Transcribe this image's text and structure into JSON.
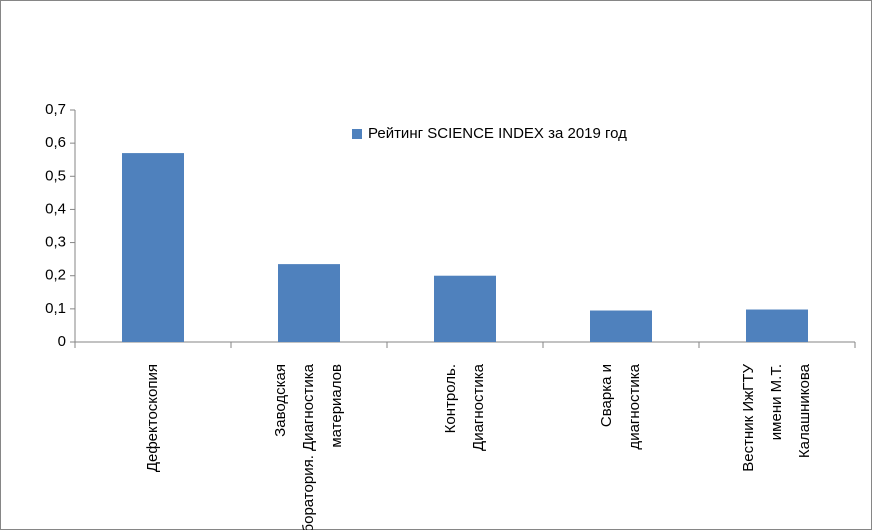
{
  "chart_data": {
    "type": "bar",
    "categories": [
      [
        "Дефектоскопия"
      ],
      [
        "Заводская",
        "лаборатория. Диагностика",
        "материалов"
      ],
      [
        "Контроль.",
        "Диагностика"
      ],
      [
        "Сварка и",
        "диагностика"
      ],
      [
        "Вестник ИжГТУ",
        "имени М.Т.",
        "Калашникова"
      ]
    ],
    "series": [
      {
        "name": "Рейтинг SCIENCE INDEX за 2019 год",
        "color": "#4f81bd",
        "values": [
          0.57,
          0.235,
          0.2,
          0.095,
          0.098
        ]
      }
    ],
    "ylim": [
      0,
      0.7
    ],
    "yticks": [
      0,
      {
        "value": 0.1,
        "label": "0,1"
      },
      {
        "value": 0.2,
        "label": "0,2"
      },
      {
        "value": 0.3,
        "label": "0,3"
      },
      {
        "value": 0.4,
        "label": "0,4"
      },
      {
        "value": 0.5,
        "label": "0,5"
      },
      {
        "value": 0.6,
        "label": "0,6"
      },
      {
        "value": 0.7,
        "label": "0,7"
      }
    ],
    "grid": false,
    "legend": "top-right"
  }
}
